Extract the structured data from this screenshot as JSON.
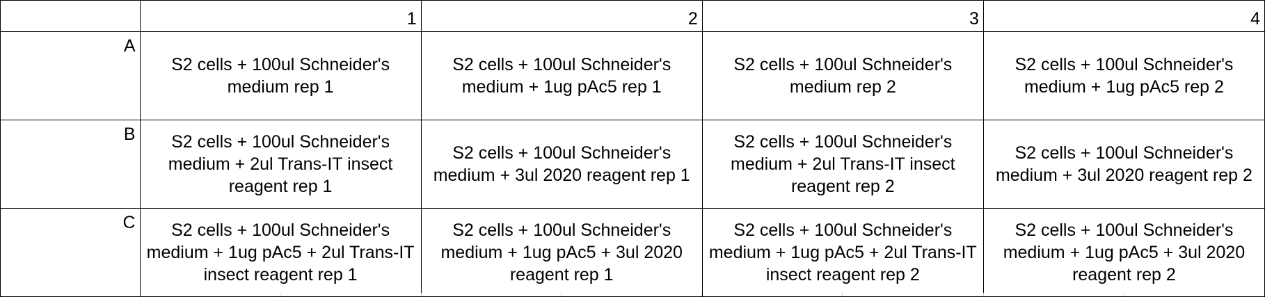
{
  "columns": [
    "1",
    "2",
    "3",
    "4"
  ],
  "rows": [
    {
      "label": "A",
      "cells": [
        "S2 cells + 100ul Schneider's medium rep 1",
        "S2 cells + 100ul Schneider's medium + 1ug pAc5 rep 1",
        "S2 cells + 100ul Schneider's medium rep 2",
        "S2 cells + 100ul Schneider's medium + 1ug pAc5 rep 2"
      ]
    },
    {
      "label": "B",
      "cells": [
        "S2 cells + 100ul Schneider's medium + 2ul Trans-IT insect reagent rep 1",
        "S2 cells + 100ul Schneider's medium + 3ul 2020 reagent rep 1",
        "S2 cells + 100ul Schneider's medium + 2ul Trans-IT insect reagent rep 2",
        "S2 cells + 100ul Schneider's medium + 3ul 2020 reagent rep 2"
      ]
    },
    {
      "label": "C",
      "cells": [
        "S2 cells + 100ul Schneider's medium + 1ug pAc5 + 2ul Trans-IT insect reagent rep 1",
        "S2 cells + 100ul Schneider's medium + 1ug pAc5 + 3ul 2020 reagent rep 1",
        "S2 cells + 100ul Schneider's medium + 1ug pAc5 + 2ul Trans-IT insect reagent rep 2",
        "S2 cells + 100ul Schneider's medium + 1ug pAc5 + 3ul 2020 reagent rep 2"
      ]
    }
  ]
}
